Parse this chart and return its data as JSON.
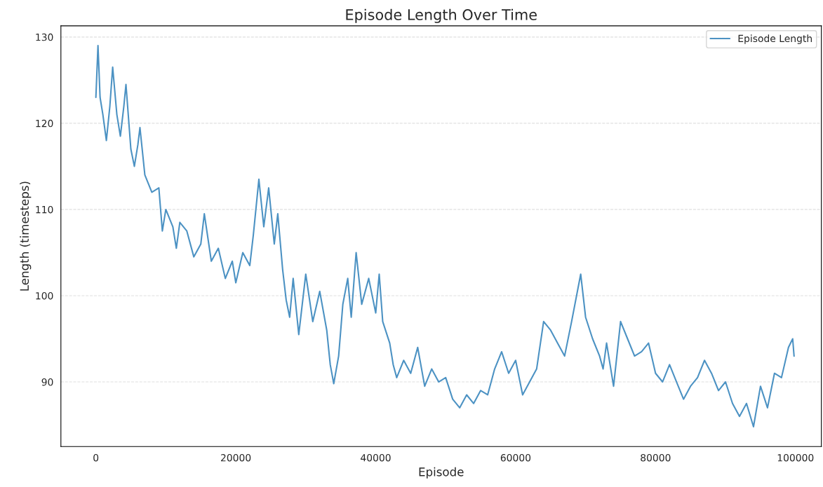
{
  "chart_data": {
    "type": "line",
    "title": "Episode Length Over Time",
    "xlabel": "Episode",
    "ylabel": "Length (timesteps)",
    "x": [
      0,
      300,
      600,
      1000,
      1500,
      2000,
      2400,
      3000,
      3500,
      4000,
      4300,
      5000,
      5500,
      6000,
      6300,
      7000,
      8000,
      9000,
      9500,
      10000,
      11000,
      11500,
      12000,
      13000,
      14000,
      15000,
      15500,
      16500,
      17500,
      18500,
      19500,
      20000,
      21000,
      22000,
      22500,
      23300,
      24000,
      24700,
      25500,
      26000,
      26700,
      27200,
      27700,
      28200,
      29000,
      30000,
      31000,
      32000,
      33000,
      33500,
      34000,
      34700,
      35300,
      36000,
      36500,
      37200,
      38000,
      39000,
      40000,
      40500,
      41000,
      42000,
      42500,
      43000,
      44000,
      45000,
      46000,
      47000,
      48000,
      49000,
      50000,
      51000,
      52000,
      53000,
      54000,
      55000,
      56000,
      57000,
      58000,
      59000,
      60000,
      61000,
      62000,
      63000,
      64000,
      65000,
      66000,
      67000,
      68000,
      69300,
      70000,
      71000,
      72000,
      72500,
      73000,
      74000,
      75000,
      76000,
      77000,
      78000,
      79000,
      80000,
      81000,
      82000,
      83000,
      84000,
      85000,
      86000,
      87000,
      88000,
      89000,
      90000,
      91000,
      92000,
      93000,
      94000,
      95000,
      96000,
      97000,
      98000,
      99000,
      99600,
      99800
    ],
    "series": [
      {
        "name": "Episode Length",
        "color": "#4c92c3",
        "values": [
          123,
          129,
          123,
          121,
          118,
          122,
          126.5,
          121,
          118.5,
          122,
          124.5,
          117,
          115,
          117.5,
          119.5,
          114,
          112,
          112.5,
          107.5,
          110,
          108,
          105.5,
          108.5,
          107.5,
          104.5,
          106,
          109.5,
          104,
          105.5,
          102,
          104,
          101.5,
          105,
          103.5,
          107,
          113.5,
          108,
          112.5,
          106,
          109.5,
          103,
          99.5,
          97.5,
          102,
          95.5,
          102.5,
          97,
          100.5,
          96,
          92,
          89.8,
          93,
          99,
          102,
          97.5,
          105,
          99,
          102,
          98,
          102.5,
          97,
          94.5,
          92,
          90.5,
          92.5,
          91,
          94,
          89.5,
          91.5,
          90,
          90.5,
          88,
          87,
          88.5,
          87.5,
          89,
          88.5,
          91.5,
          93.5,
          91,
          92.5,
          88.5,
          90,
          91.5,
          97,
          96,
          94.5,
          93,
          97,
          102.5,
          97.5,
          95,
          93,
          91.5,
          94.5,
          89.5,
          97,
          95,
          93,
          93.5,
          94.5,
          91,
          90,
          92,
          90,
          88,
          89.5,
          90.5,
          92.5,
          91,
          89,
          90,
          87.5,
          86,
          87.5,
          84.8,
          89.5,
          87,
          91,
          90.5,
          94,
          95,
          93
        ]
      }
    ],
    "xlim": [
      -5000,
      103700
    ],
    "ylim": [
      82.5,
      131.3
    ],
    "xticks": [
      0,
      20000,
      40000,
      60000,
      80000,
      100000
    ],
    "yticks": [
      90,
      100,
      110,
      120,
      130
    ],
    "grid": "y",
    "legend": "top right",
    "line_style": "solid",
    "marker": "none"
  }
}
